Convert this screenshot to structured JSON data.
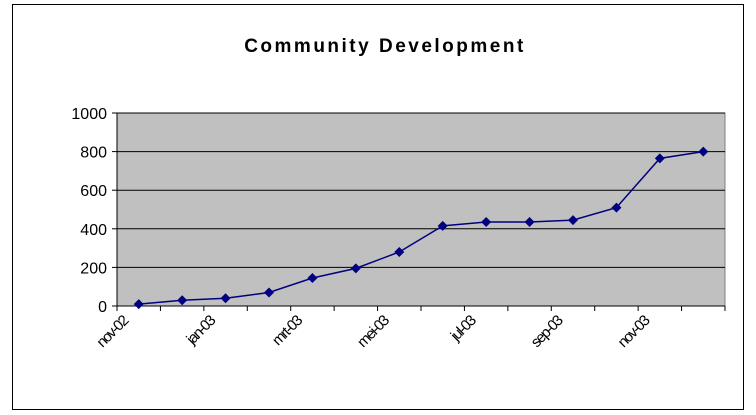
{
  "chart_data": {
    "type": "line",
    "title": "Community Development",
    "categories": [
      "nov-02",
      null,
      "jan-03",
      null,
      "mrt-03",
      null,
      "mei-03",
      null,
      "jul-03",
      null,
      "sep-03",
      null,
      "nov-03",
      null
    ],
    "series": [
      {
        "name": null,
        "color": "#000080",
        "values": [
          10,
          30,
          40,
          70,
          145,
          195,
          280,
          415,
          435,
          435,
          445,
          510,
          765,
          800
        ]
      }
    ],
    "ylim": [
      0,
      1000
    ],
    "yticks": [
      0,
      200,
      400,
      600,
      800,
      1000
    ],
    "grid": true,
    "plot_background": "#c0c0c0"
  }
}
